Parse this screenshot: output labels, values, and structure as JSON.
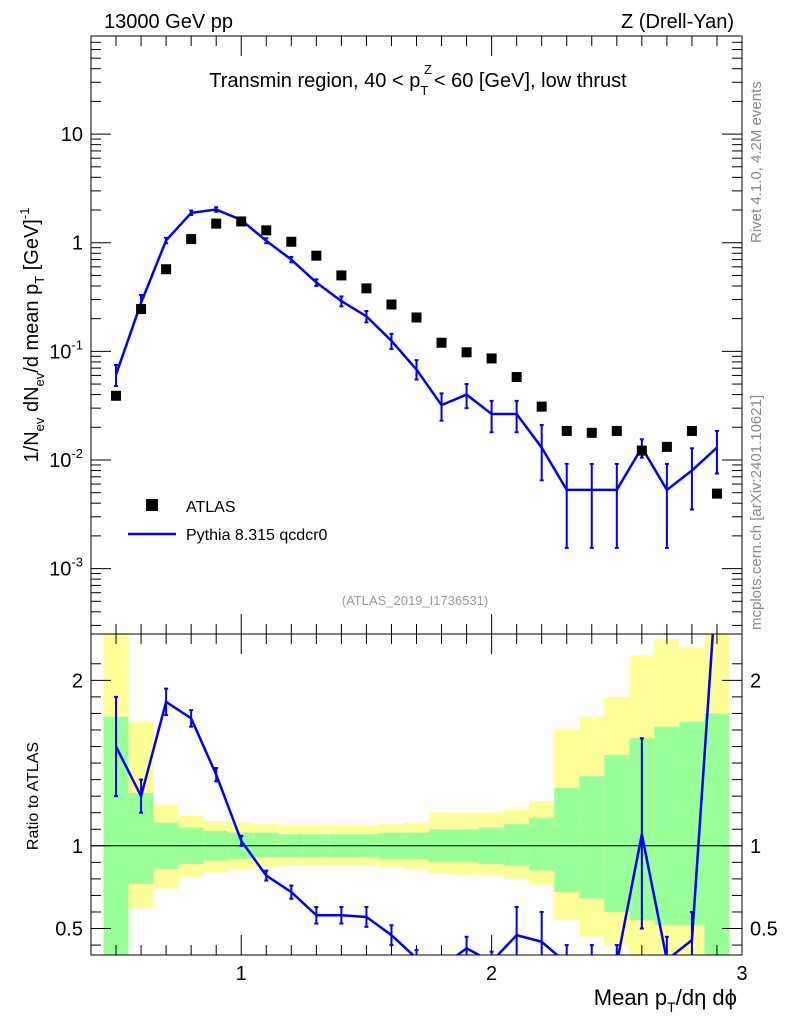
{
  "header": {
    "energy_label": "13000 GeV pp",
    "process_label": "Z (Drell-Yan)",
    "plot_title": "Transmin region, 40 < p",
    "plot_title_sup": "Z",
    "plot_title_sub": "T",
    "plot_title_tail": " < 60 [GeV], low thrust"
  },
  "side_labels": {
    "rivet": "Rivet 4.1.0,  4.2M events",
    "mcplots": "mcplots.cern.ch [arXiv:2401.10621]"
  },
  "watermark": "(ATLAS_2019_I1736531)",
  "chart_data": {
    "type": "scatter",
    "title": "Transmin region, 40 < pT^Z < 60 [GeV], low thrust",
    "xlabel": "Mean p_T/dη dϕ",
    "ylabel": "1/N_ev dN_ev/d mean p_T [GeV]^-1",
    "ratio_ylabel": "Ratio to ATLAS",
    "xlim": [
      0.4,
      3.0
    ],
    "ylim": [
      0.00025,
      80
    ],
    "ratio_ylim": [
      0.34,
      2.28
    ],
    "x_tick_labels": [
      "1",
      "2",
      "3"
    ],
    "y_tick_labels": [
      "10^-3",
      "10^-2",
      "10^-1",
      "1",
      "10"
    ],
    "ratio_tick_labels": [
      "0.5",
      "1",
      "2"
    ],
    "legend_position": "bottom-left",
    "legend": {
      "data": "ATLAS",
      "mc": "Pythia 8.315 qcdcr0"
    },
    "x": [
      0.5,
      0.6,
      0.7,
      0.8,
      0.9,
      1.0,
      1.1,
      1.2,
      1.3,
      1.4,
      1.5,
      1.6,
      1.7,
      1.8,
      1.9,
      2.0,
      2.1,
      2.2,
      2.3,
      2.4,
      2.5,
      2.6,
      2.7,
      2.8,
      2.9
    ],
    "series": [
      {
        "name": "ATLAS",
        "values": [
          0.039,
          0.245,
          0.57,
          1.08,
          1.5,
          1.57,
          1.3,
          1.02,
          0.76,
          0.5,
          0.38,
          0.27,
          0.205,
          0.12,
          0.098,
          0.086,
          0.058,
          0.031,
          0.0185,
          0.0178,
          0.0185,
          0.0122,
          0.0132,
          0.0185,
          0.0049
        ]
      },
      {
        "name": "Pythia 8.315 qcdcr0",
        "values": [
          0.061,
          0.28,
          1.05,
          1.88,
          2.02,
          1.62,
          1.04,
          0.7,
          0.43,
          0.29,
          0.21,
          0.125,
          0.068,
          0.032,
          0.04,
          0.0265,
          0.0265,
          0.013,
          0.0053,
          0.0053,
          0.0053,
          0.013,
          0.0053,
          0.008,
          0.013
        ],
        "err_up": [
          0.075,
          0.33,
          1.11,
          1.98,
          2.12,
          1.68,
          1.1,
          0.74,
          0.46,
          0.32,
          0.235,
          0.145,
          0.083,
          0.041,
          0.05,
          0.035,
          0.035,
          0.021,
          0.0092,
          0.0092,
          0.0092,
          0.0155,
          0.0092,
          0.0128,
          0.0185
        ],
        "err_down": [
          0.048,
          0.24,
          0.99,
          1.8,
          1.93,
          1.56,
          0.99,
          0.66,
          0.4,
          0.26,
          0.185,
          0.105,
          0.055,
          0.023,
          0.03,
          0.018,
          0.018,
          0.0065,
          0.00155,
          0.00155,
          0.00155,
          0.0105,
          0.00155,
          0.0035,
          0.0075
        ]
      }
    ],
    "ratio": {
      "x": [
        0.5,
        0.6,
        0.7,
        0.8,
        0.9,
        1.0,
        1.1,
        1.2,
        1.3,
        1.4,
        1.5,
        1.6,
        1.7,
        1.8,
        1.9,
        2.0,
        2.1,
        2.2,
        2.3,
        2.4,
        2.5,
        2.6,
        2.7,
        2.8,
        2.9
      ],
      "values": [
        1.6,
        1.3,
        1.87,
        1.77,
        1.43,
        1.03,
        0.82,
        0.72,
        0.58,
        0.58,
        0.57,
        0.46,
        0.32,
        0.27,
        0.38,
        0.3,
        0.46,
        0.42,
        0.29,
        0.3,
        0.29,
        1.07,
        0.31,
        0.43,
        2.65
      ],
      "err_up": [
        1.9,
        1.4,
        1.95,
        1.82,
        1.47,
        1.06,
        0.85,
        0.76,
        0.63,
        0.63,
        0.63,
        0.52,
        0.37,
        0.32,
        0.45,
        0.36,
        0.63,
        0.6,
        0.4,
        0.4,
        0.4,
        1.65,
        0.45,
        0.6,
        3.0
      ],
      "err_down": [
        1.3,
        1.2,
        1.79,
        1.72,
        1.39,
        1.0,
        0.79,
        0.68,
        0.53,
        0.53,
        0.51,
        0.4,
        0.27,
        0.22,
        0.31,
        0.24,
        0.29,
        0.24,
        0.18,
        0.2,
        0.18,
        0.5,
        0.17,
        0.26,
        2.3
      ],
      "bands": {
        "edges": [
          0.45,
          0.55,
          0.65,
          0.75,
          0.85,
          0.95,
          1.05,
          1.15,
          1.25,
          1.35,
          1.45,
          1.55,
          1.65,
          1.75,
          1.85,
          1.95,
          2.05,
          2.15,
          2.25,
          2.35,
          2.45,
          2.55,
          2.65,
          2.75,
          2.85,
          2.95
        ],
        "yellow_lo": [
          0.2,
          0.62,
          0.74,
          0.81,
          0.84,
          0.86,
          0.87,
          0.88,
          0.88,
          0.88,
          0.88,
          0.87,
          0.86,
          0.83,
          0.82,
          0.82,
          0.8,
          0.76,
          0.55,
          0.45,
          0.4,
          0.33,
          0.3,
          0.3,
          0.25
        ],
        "yellow_hi": [
          2.4,
          1.75,
          1.25,
          1.18,
          1.15,
          1.14,
          1.13,
          1.12,
          1.12,
          1.12,
          1.12,
          1.13,
          1.14,
          1.2,
          1.2,
          1.2,
          1.22,
          1.27,
          1.7,
          1.78,
          1.9,
          2.15,
          2.25,
          2.2,
          2.45
        ],
        "green_lo": [
          0.2,
          0.77,
          0.86,
          0.89,
          0.91,
          0.92,
          0.93,
          0.93,
          0.93,
          0.93,
          0.93,
          0.92,
          0.92,
          0.9,
          0.9,
          0.89,
          0.88,
          0.85,
          0.72,
          0.68,
          0.6,
          0.55,
          0.52,
          0.52,
          0.2
        ],
        "green_hi": [
          1.78,
          1.32,
          1.14,
          1.11,
          1.09,
          1.08,
          1.08,
          1.07,
          1.07,
          1.07,
          1.07,
          1.08,
          1.08,
          1.1,
          1.1,
          1.11,
          1.13,
          1.17,
          1.35,
          1.42,
          1.55,
          1.65,
          1.72,
          1.75,
          1.8
        ]
      }
    }
  }
}
